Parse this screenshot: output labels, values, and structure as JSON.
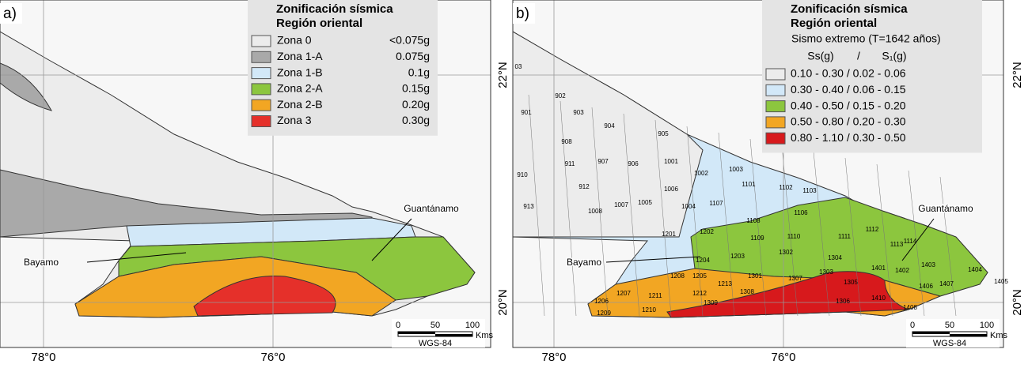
{
  "panels": [
    {
      "label": "a)",
      "legend": {
        "title": [
          "Zonificación sísmica",
          "Región oriental"
        ],
        "items": [
          {
            "name": "Zona 0",
            "value": "<0.075g",
            "color": "#ececec"
          },
          {
            "name": "Zona 1-A",
            "value": "0.075g",
            "color": "#a9a9a9"
          },
          {
            "name": "Zona 1-B",
            "value": "0.1g",
            "color": "#d2e8f8"
          },
          {
            "name": "Zona 2-A",
            "value": "0.15g",
            "color": "#8cc63e"
          },
          {
            "name": "Zona 2-B",
            "value": "0.20g",
            "color": "#f2a623"
          },
          {
            "name": "Zona 3",
            "value": "0.30g",
            "color": "#e5302a"
          }
        ]
      },
      "places": [
        "Bayamo",
        "Guantánamo"
      ],
      "lon_labels": [
        "78°0",
        "76°0"
      ],
      "scale": {
        "ticks": [
          "0",
          "50",
          "100"
        ],
        "unit": "Kms",
        "datum": "WGS-84"
      }
    },
    {
      "label": "b)",
      "legend": {
        "title": [
          "Zonificación sísmica",
          "Región oriental"
        ],
        "subtitle": "Sismo extremo (T=1642 años)",
        "header": [
          "Ss(g)",
          "/",
          "S₁(g)"
        ],
        "items": [
          {
            "label": "0.10 - 0.30 / 0.02 - 0.06",
            "color": "#ececec"
          },
          {
            "label": "0.30 - 0.40 / 0.06 - 0.15",
            "color": "#d2e8f8"
          },
          {
            "label": "0.40 - 0.50 / 0.15 - 0.20",
            "color": "#8cc63e"
          },
          {
            "label": "0.50 - 0.80 / 0.20 - 0.30",
            "color": "#f2a623"
          },
          {
            "label": "0.80 - 1.10 / 0.30 - 0.50",
            "color": "#d7191c"
          }
        ]
      },
      "places": [
        "Bayamo",
        "Guantánamo"
      ],
      "lon_labels": [
        "78°0",
        "76°0"
      ],
      "lat_labels": [
        "22°N",
        "20°N"
      ],
      "scale": {
        "ticks": [
          "0",
          "50",
          "100"
        ],
        "unit": "Kms",
        "datum": "WGS-84"
      },
      "municipalities": [
        "03",
        "902",
        "901",
        "903",
        "904",
        "905",
        "908",
        "911",
        "907",
        "906",
        "1001",
        "910",
        "912",
        "1006",
        "1002",
        "1003",
        "1101",
        "1102",
        "1103",
        "913",
        "1008",
        "1007",
        "1005",
        "1004",
        "1107",
        "1108",
        "1106",
        "1201",
        "1202",
        "1109",
        "1110",
        "1111",
        "1112",
        "1114",
        "1113",
        "1204",
        "1203",
        "1302",
        "1304",
        "1403",
        "1208",
        "1205",
        "1301",
        "1307",
        "1303",
        "1401",
        "1402",
        "1404",
        "1405",
        "1207",
        "1206",
        "1211",
        "1212",
        "1213",
        "1308",
        "1305",
        "1410",
        "1406",
        "1407",
        "1209",
        "1210",
        "1309",
        "1306",
        "1408"
      ]
    }
  ]
}
